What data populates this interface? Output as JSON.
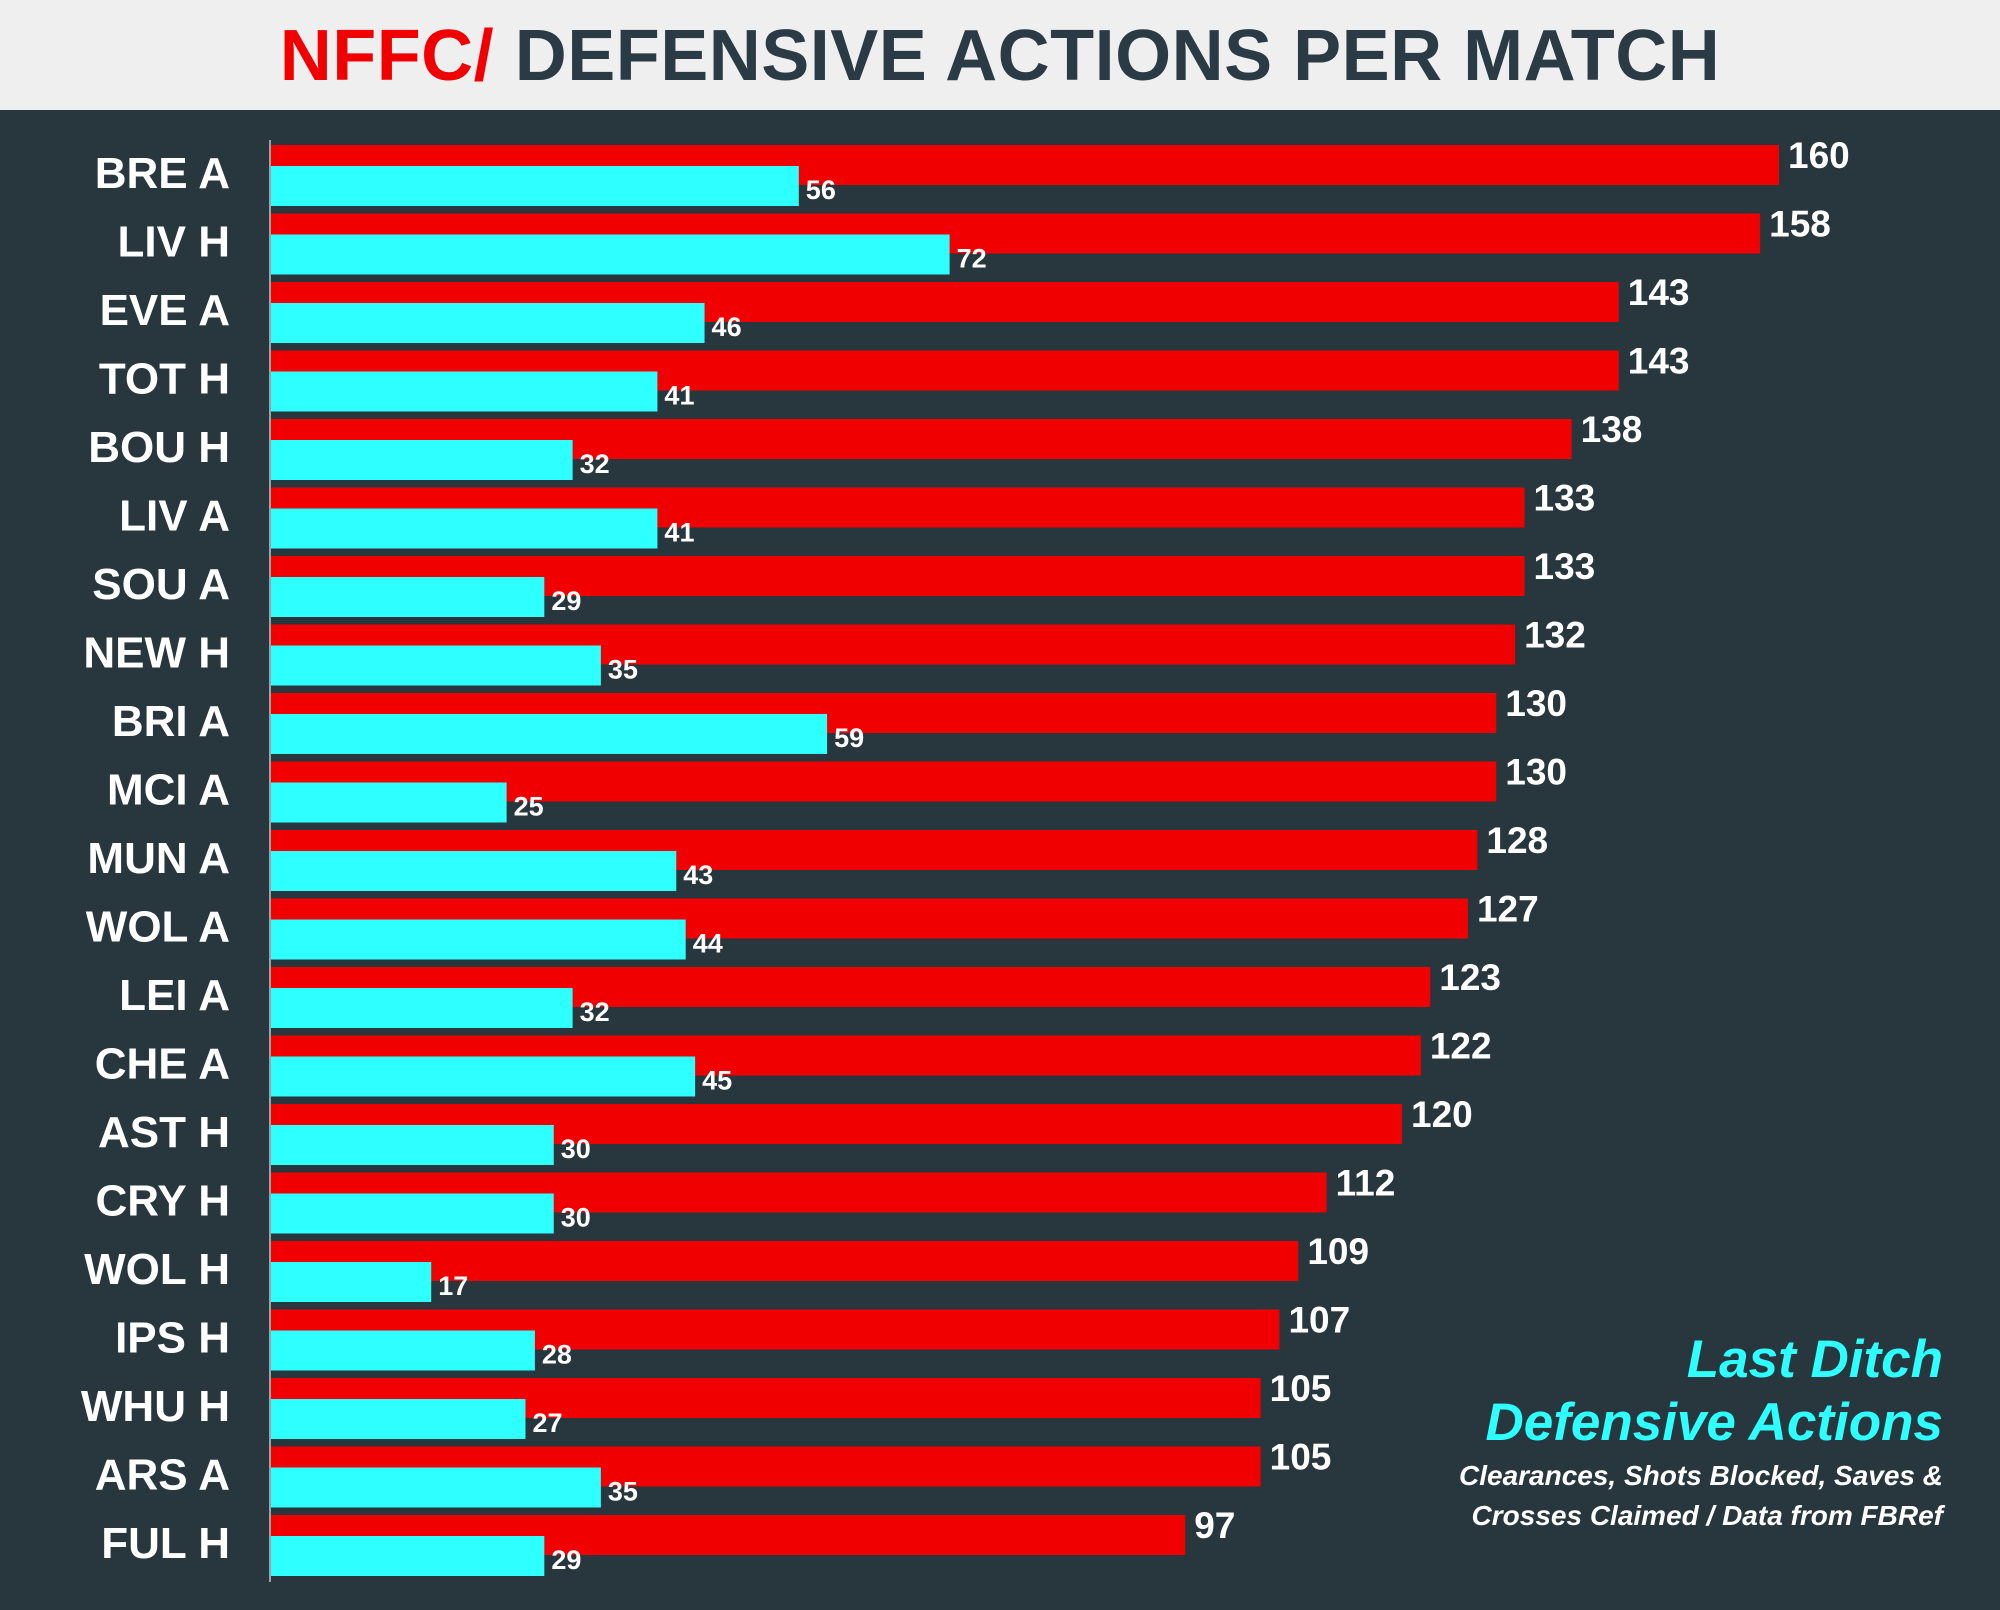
{
  "title": {
    "prefix": "NFFC/",
    "main": "DEFENSIVE ACTIONS PER MATCH"
  },
  "legend": {
    "line1": "Last Ditch",
    "line2": "Defensive Actions",
    "line3": "Clearances, Shots Blocked, Saves &",
    "line4": "Crosses Claimed / Data from FBRef"
  },
  "colors": {
    "background": "#28363e",
    "header_bg": "#efefef",
    "primary_series": "#f00000",
    "secondary_series": "#2effff",
    "title_dark": "#2b3b45"
  },
  "chart_data": {
    "type": "bar",
    "orientation": "horizontal",
    "categories": [
      "BRE A",
      "LIV H",
      "EVE A",
      "TOT H",
      "BOU H",
      "LIV A",
      "SOU A",
      "NEW H",
      "BRI A",
      "MCI A",
      "MUN A",
      "WOL A",
      "LEI A",
      "CHE A",
      "AST H",
      "CRY H",
      "WOL H",
      "IPS H",
      "WHU H",
      "ARS A",
      "FUL H"
    ],
    "series": [
      {
        "values": [
          160,
          158,
          143,
          143,
          138,
          133,
          133,
          132,
          130,
          130,
          128,
          127,
          123,
          122,
          120,
          112,
          109,
          107,
          105,
          105,
          97
        ]
      },
      {
        "name": "Last Ditch Defensive Actions",
        "values": [
          56,
          72,
          46,
          41,
          32,
          41,
          29,
          35,
          59,
          25,
          43,
          44,
          32,
          45,
          30,
          30,
          17,
          28,
          27,
          35,
          29
        ]
      }
    ],
    "xlim": [
      0,
      160
    ],
    "grid": false,
    "legend_position": "bottom-right"
  }
}
